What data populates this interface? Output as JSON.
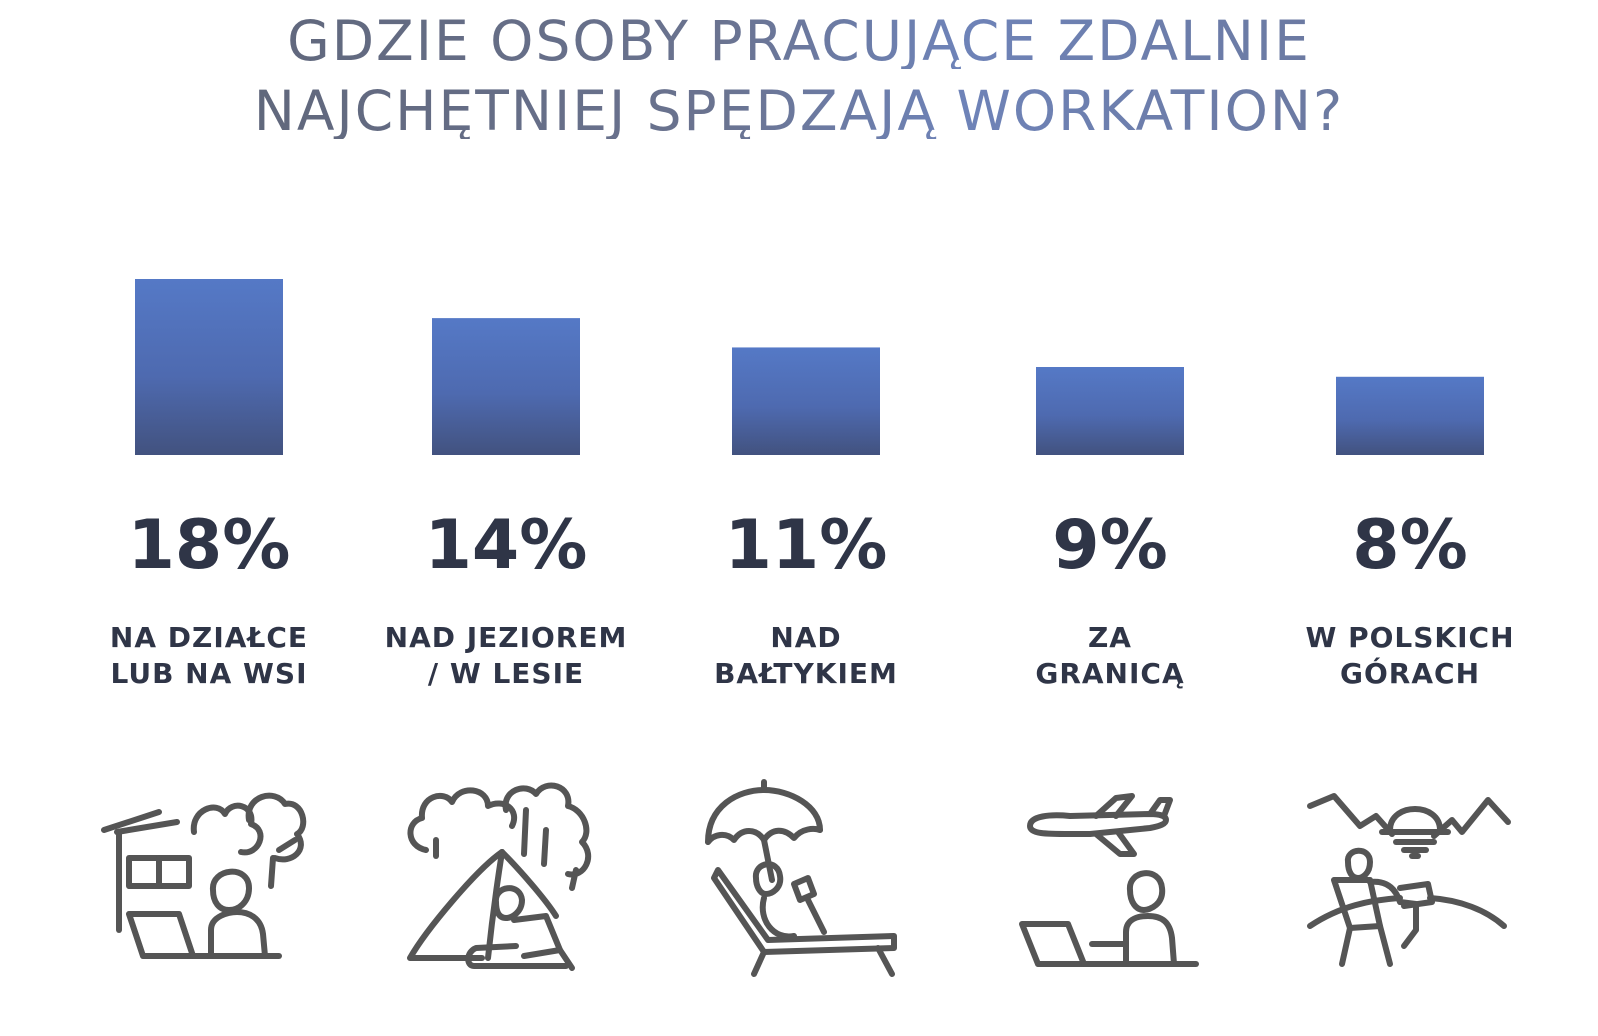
{
  "title": {
    "line1": "GDZIE OSOBY PRACUJĄCE ZDALNIE",
    "line2": "NAJCHĘTNIEJ SPĘDZAJĄ WORKATION?"
  },
  "colors": {
    "bar_top": "#5579c6",
    "bar_bottom": "#42527f",
    "text_dark": "#2f3547",
    "icon_stroke": "#555555"
  },
  "chart_data": {
    "type": "bar",
    "title": "GDZIE OSOBY PRACUJĄCE ZDALNIE NAJCHĘTNIEJ SPĘDZAJĄ WORKATION?",
    "categories": [
      "NA DZIAŁCE LUB NA WSI",
      "NAD JEZIOREM / W LESIE",
      "NAD BAŁTYKIEM",
      "ZA GRANICĄ",
      "W POLSKICH GÓRACH"
    ],
    "values": [
      18,
      14,
      11,
      9,
      8
    ],
    "value_labels": [
      "18%",
      "14%",
      "11%",
      "9%",
      "8%"
    ],
    "label_lines": [
      [
        "NA DZIAŁCE",
        "LUB NA WSI"
      ],
      [
        "NAD JEZIOREM",
        "/ W LESIE"
      ],
      [
        "NAD",
        "BAŁTYKIEM"
      ],
      [
        "ZA",
        "GRANICĄ"
      ],
      [
        "W POLSKICH",
        "GÓRACH"
      ]
    ],
    "unit": "%",
    "xlabel": "",
    "ylabel": "",
    "grid": false,
    "legend": "none"
  },
  "icons": [
    "remote-worker-garden-house-icon",
    "camping-tent-forest-laptop-icon",
    "beach-sunbed-umbrella-icon",
    "airplane-laptop-abroad-icon",
    "mountains-sunset-chair-icon"
  ]
}
